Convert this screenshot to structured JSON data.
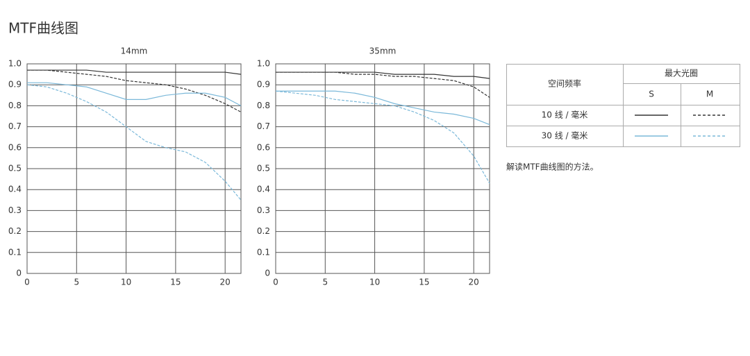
{
  "title": "MTF曲线图",
  "chart_data": [
    {
      "type": "line",
      "title": "14mm",
      "x": [
        0,
        2,
        4,
        6,
        8,
        10,
        12,
        14,
        16,
        18,
        20,
        21.6
      ],
      "xlim": [
        0,
        21.6
      ],
      "xticks": [
        0,
        5,
        10,
        15,
        20
      ],
      "ylim": [
        0,
        1
      ],
      "yticks": [
        0,
        0.1,
        0.2,
        0.3,
        0.4,
        0.5,
        0.6,
        0.7,
        0.8,
        0.9,
        {
          "value": 1,
          "label": "1.0"
        }
      ],
      "grid": true,
      "series": [
        {
          "color": "#333333",
          "style": "solid",
          "values": [
            0.97,
            0.97,
            0.97,
            0.97,
            0.96,
            0.96,
            0.96,
            0.96,
            0.96,
            0.96,
            0.96,
            0.95
          ]
        },
        {
          "color": "#333333",
          "style": "dashed",
          "values": [
            0.97,
            0.97,
            0.96,
            0.95,
            0.94,
            0.92,
            0.91,
            0.9,
            0.88,
            0.85,
            0.81,
            0.77
          ]
        },
        {
          "color": "#7ab8d9",
          "style": "solid",
          "values": [
            0.91,
            0.91,
            0.9,
            0.89,
            0.86,
            0.83,
            0.83,
            0.85,
            0.86,
            0.86,
            0.84,
            0.8
          ]
        },
        {
          "color": "#7ab8d9",
          "style": "dashed",
          "values": [
            0.9,
            0.89,
            0.86,
            0.82,
            0.77,
            0.7,
            0.63,
            0.6,
            0.58,
            0.53,
            0.44,
            0.35
          ]
        }
      ]
    },
    {
      "type": "line",
      "title": "35mm",
      "x": [
        0,
        2,
        4,
        6,
        8,
        10,
        12,
        14,
        16,
        18,
        20,
        21.6
      ],
      "xlim": [
        0,
        21.6
      ],
      "xticks": [
        0,
        5,
        10,
        15,
        20
      ],
      "ylim": [
        0,
        1
      ],
      "yticks": [
        0,
        0.1,
        0.2,
        0.3,
        0.4,
        0.5,
        0.6,
        0.7,
        0.8,
        0.9,
        {
          "value": 1,
          "label": "1.0"
        }
      ],
      "grid": true,
      "series": [
        {
          "color": "#333333",
          "style": "solid",
          "values": [
            0.96,
            0.96,
            0.96,
            0.96,
            0.96,
            0.96,
            0.95,
            0.95,
            0.95,
            0.94,
            0.94,
            0.93
          ]
        },
        {
          "color": "#333333",
          "style": "dashed",
          "values": [
            0.96,
            0.96,
            0.96,
            0.96,
            0.95,
            0.95,
            0.94,
            0.94,
            0.93,
            0.92,
            0.89,
            0.84
          ]
        },
        {
          "color": "#7ab8d9",
          "style": "solid",
          "values": [
            0.87,
            0.87,
            0.87,
            0.87,
            0.86,
            0.84,
            0.81,
            0.79,
            0.77,
            0.76,
            0.74,
            0.71
          ]
        },
        {
          "color": "#7ab8d9",
          "style": "dashed",
          "values": [
            0.87,
            0.86,
            0.85,
            0.83,
            0.82,
            0.81,
            0.8,
            0.77,
            0.73,
            0.67,
            0.56,
            0.43
          ]
        }
      ]
    }
  ],
  "legend": {
    "frequency_header": "空间频率",
    "aperture_header": "最大光圈",
    "columns": [
      "S",
      "M"
    ],
    "rows": [
      "10 线 / 毫米",
      "30 线 / 毫米"
    ]
  },
  "note": "解读MTF曲线图的方法。"
}
